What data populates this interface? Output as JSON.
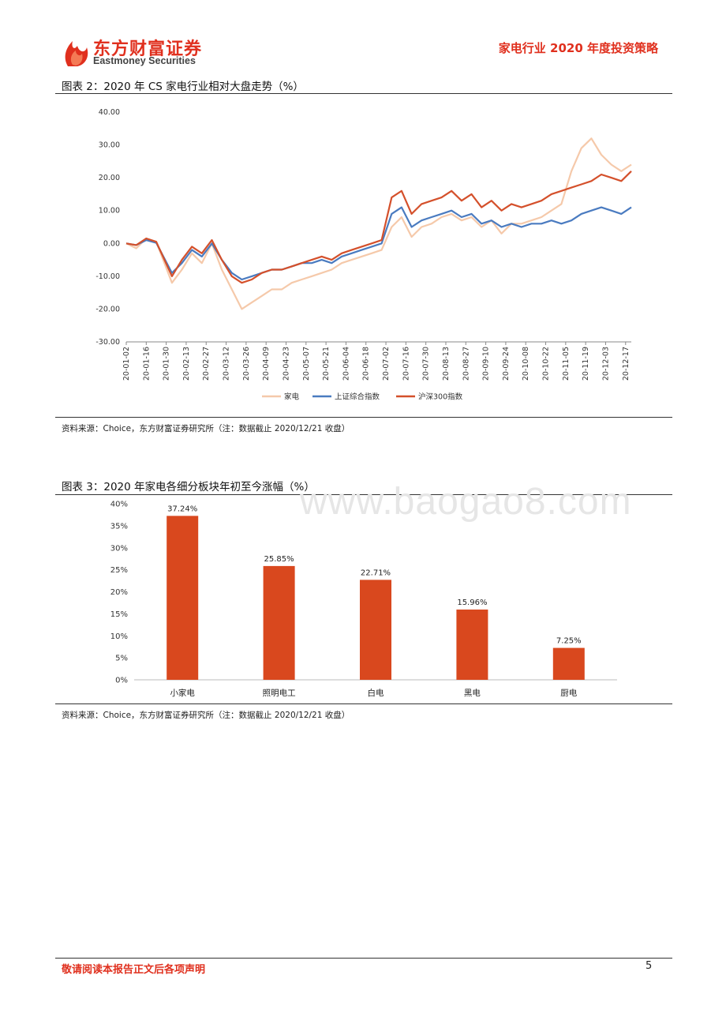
{
  "header": {
    "logo_cn": "东方财富证券",
    "logo_en": "Eastmoney Securities",
    "report_title": "家电行业 2020 年度投资策略"
  },
  "figure2": {
    "title": "图表 2：2020 年 CS 家电行业相对大盘走势（%）",
    "source": "资料来源：Choice，东方财富证券研究所（注：数据截止 2020/12/21 收盘）"
  },
  "figure3": {
    "title": "图表 3：2020 年家电各细分板块年初至今涨幅（%）",
    "source": "资料来源：Choice，东方财富证券研究所（注：数据截止 2020/12/21 收盘）"
  },
  "watermark": "www.baogao8.com",
  "footer": {
    "disclaimer": "敬请阅读本报告正文后各项声明",
    "page_number": "5"
  },
  "chart_data": [
    {
      "type": "line",
      "ylim": [
        -30,
        40
      ],
      "y_ticks": [
        "40.00",
        "30.00",
        "20.00",
        "10.00",
        "0.00",
        "-10.00",
        "-20.00",
        "-30.00"
      ],
      "x_ticks": [
        "20-01-02",
        "20-01-16",
        "20-01-30",
        "20-02-13",
        "20-02-27",
        "20-03-12",
        "20-03-26",
        "20-04-09",
        "20-04-23",
        "20-05-07",
        "20-05-21",
        "20-06-04",
        "20-06-18",
        "20-07-02",
        "20-07-16",
        "20-07-30",
        "20-08-13",
        "20-08-27",
        "20-09-10",
        "20-09-24",
        "20-10-08",
        "20-10-22",
        "20-11-05",
        "20-11-19",
        "20-12-03",
        "20-12-17"
      ],
      "x": [
        "2020-01-02",
        "2020-01-09",
        "2020-01-16",
        "2020-01-23",
        "2020-02-03",
        "2020-02-10",
        "2020-02-17",
        "2020-02-24",
        "2020-03-02",
        "2020-03-09",
        "2020-03-16",
        "2020-03-23",
        "2020-03-30",
        "2020-04-06",
        "2020-04-13",
        "2020-04-20",
        "2020-04-27",
        "2020-05-04",
        "2020-05-11",
        "2020-05-18",
        "2020-05-25",
        "2020-06-01",
        "2020-06-08",
        "2020-06-15",
        "2020-06-22",
        "2020-06-29",
        "2020-07-06",
        "2020-07-13",
        "2020-07-20",
        "2020-07-27",
        "2020-08-03",
        "2020-08-10",
        "2020-08-17",
        "2020-08-24",
        "2020-08-31",
        "2020-09-07",
        "2020-09-14",
        "2020-09-21",
        "2020-09-28",
        "2020-10-05",
        "2020-10-12",
        "2020-10-19",
        "2020-10-26",
        "2020-11-02",
        "2020-11-09",
        "2020-11-16",
        "2020-11-23",
        "2020-11-30",
        "2020-12-07",
        "2020-12-14",
        "2020-12-21"
      ],
      "legend_position": "bottom",
      "series": [
        {
          "name": "家电",
          "color": "#f5c9aa",
          "values": [
            0,
            -1.5,
            1.5,
            0.5,
            -12,
            -8,
            -3,
            -6,
            0,
            -8,
            -14,
            -20,
            -18,
            -16,
            -14,
            -14,
            -12,
            -11,
            -10,
            -9,
            -8,
            -6,
            -5,
            -4,
            -3,
            -2,
            5,
            8,
            2,
            5,
            6,
            8,
            9,
            7,
            8,
            5,
            7,
            3,
            6,
            6,
            7,
            8,
            10,
            12,
            22,
            29,
            32,
            27,
            24,
            22,
            24
          ]
        },
        {
          "name": "上证综合指数",
          "color": "#4a7bc0",
          "values": [
            0,
            -0.5,
            1,
            0.2,
            -9,
            -6,
            -2,
            -4,
            0,
            -5,
            -9,
            -11,
            -10,
            -9,
            -8,
            -8,
            -7,
            -6,
            -6,
            -5,
            -6,
            -4,
            -3,
            -2,
            -1,
            0,
            9,
            11,
            5,
            7,
            8,
            9,
            10,
            8,
            9,
            6,
            7,
            5,
            6,
            5,
            6,
            6,
            7,
            6,
            7,
            9,
            10,
            11,
            10,
            9,
            11
          ]
        },
        {
          "name": "沪深300指数",
          "color": "#d4502b",
          "values": [
            0,
            -0.5,
            1.5,
            0.5,
            -10,
            -5,
            -1,
            -3,
            1,
            -5,
            -10,
            -12,
            -11,
            -9,
            -8,
            -8,
            -7,
            -6,
            -5,
            -4,
            -5,
            -3,
            -2,
            -1,
            0,
            1,
            14,
            16,
            9,
            12,
            13,
            14,
            16,
            13,
            15,
            11,
            13,
            10,
            12,
            11,
            12,
            13,
            15,
            16,
            17,
            18,
            19,
            21,
            20,
            19,
            22
          ]
        }
      ]
    },
    {
      "type": "bar",
      "categories": [
        "小家电",
        "照明电工",
        "白电",
        "黑电",
        "厨电"
      ],
      "values": [
        37.24,
        25.85,
        22.71,
        15.96,
        7.25
      ],
      "data_labels": [
        "37.24%",
        "25.85%",
        "22.71%",
        "15.96%",
        "7.25%"
      ],
      "ylim": [
        0,
        40
      ],
      "y_ticks": [
        "40%",
        "35%",
        "30%",
        "25%",
        "20%",
        "15%",
        "10%",
        "5%",
        "0%"
      ],
      "bar_color": "#d9481e"
    }
  ]
}
